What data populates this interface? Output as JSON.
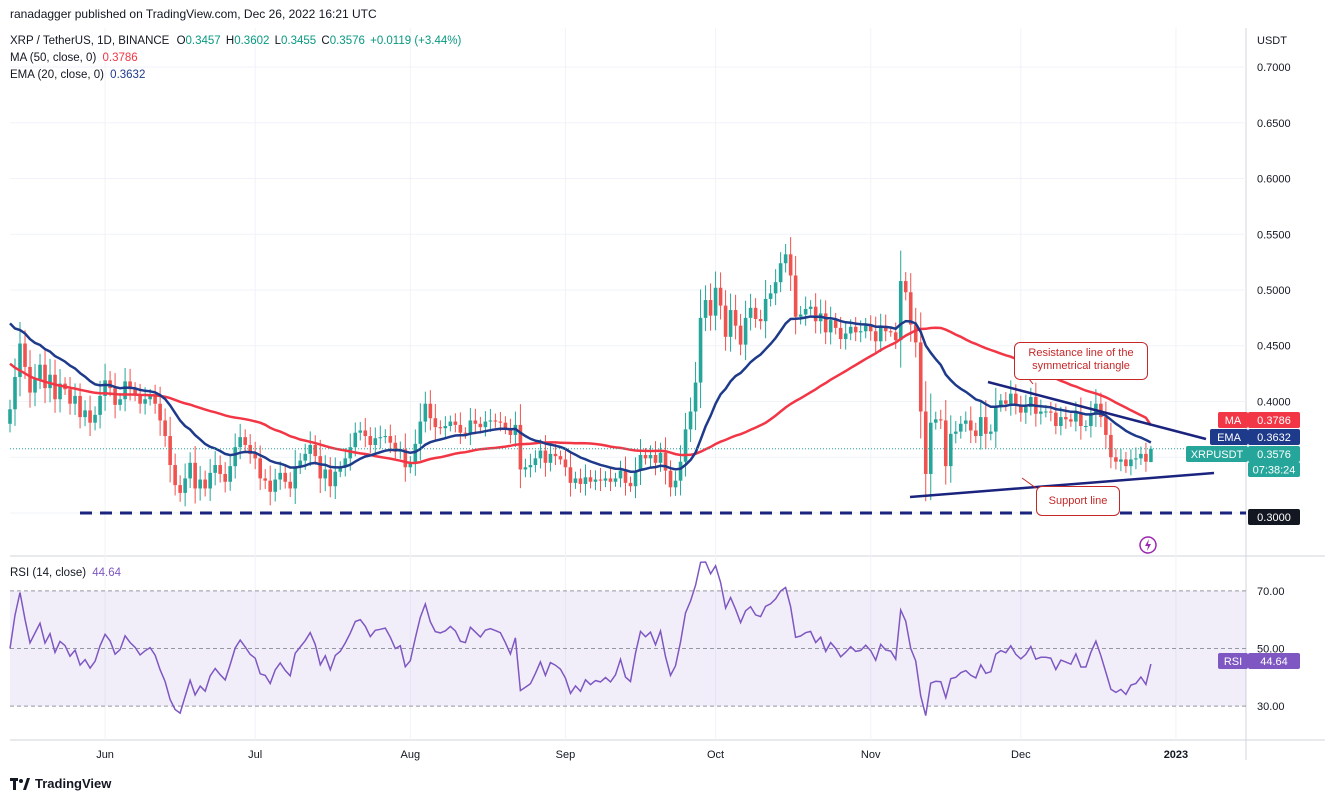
{
  "header": {
    "published": "ranadagger published on TradingView.com, Dec 26, 2022 16:21 UTC"
  },
  "legend": {
    "symbol": "XRP / TetherUS, 1D, BINANCE",
    "o_label": "O",
    "o": "0.3457",
    "h_label": "H",
    "h": "0.3602",
    "l_label": "L",
    "l": "0.3455",
    "c_label": "C",
    "c": "0.3576",
    "change": "+0.0119 (+3.44%)",
    "ma_label": "MA (50, close, 0)",
    "ma_value": "0.3786",
    "ema_label": "EMA (20, close, 0)",
    "ema_value": "0.3632",
    "rsi_label": "RSI (14, close)",
    "rsi_value": "44.64"
  },
  "price_axis": {
    "unit": "USDT",
    "ticks": [
      "0.7000",
      "0.6500",
      "0.6000",
      "0.5500",
      "0.5000",
      "0.4500",
      "0.4000",
      "0.3500",
      "0.3000"
    ]
  },
  "tags": {
    "ma": {
      "label": "MA",
      "value": "0.3786"
    },
    "ema": {
      "label": "EMA",
      "value": "0.3632"
    },
    "last": {
      "label": "XRPUSDT",
      "value": "0.3576",
      "countdown": "07:38:24"
    },
    "level": {
      "value": "0.3000"
    },
    "rsi": {
      "label": "RSI",
      "value": "44.64"
    }
  },
  "rsi_axis": {
    "ticks": [
      "70.00",
      "50.00",
      "30.00"
    ]
  },
  "time_axis": {
    "labels": [
      "Jun",
      "Jul",
      "Aug",
      "Sep",
      "Oct",
      "Nov",
      "Dec",
      "2023"
    ]
  },
  "annotations": {
    "resistance": "Resistance line of the symmetrical triangle",
    "support": "Support line"
  },
  "footer": {
    "brand": "TradingView"
  },
  "colors": {
    "up": "#26a69a",
    "down": "#ef5350",
    "ma": "#f23645",
    "ema": "#1e3a8a",
    "rsi": "#7e57c2",
    "lines": "#1a237e"
  },
  "chart_data": {
    "type": "candlestick",
    "symbol": "XRP / TetherUS, 1D, BINANCE",
    "y_unit": "USDT",
    "ylim": [
      0.265,
      0.735
    ],
    "x_range": [
      "2022-05-13",
      "2023-01-15"
    ],
    "last_candle": {
      "date": "2022-12-26",
      "open": 0.3457,
      "high": 0.3602,
      "low": 0.3455,
      "close": 0.3576
    },
    "closes": [
      0.393,
      0.422,
      0.452,
      0.431,
      0.408,
      0.42,
      0.433,
      0.412,
      0.424,
      0.402,
      0.416,
      0.411,
      0.398,
      0.405,
      0.386,
      0.392,
      0.381,
      0.388,
      0.405,
      0.419,
      0.412,
      0.397,
      0.402,
      0.418,
      0.411,
      0.406,
      0.398,
      0.402,
      0.405,
      0.398,
      0.383,
      0.369,
      0.343,
      0.325,
      0.318,
      0.331,
      0.345,
      0.322,
      0.33,
      0.322,
      0.336,
      0.343,
      0.335,
      0.328,
      0.342,
      0.359,
      0.368,
      0.361,
      0.353,
      0.349,
      0.331,
      0.329,
      0.319,
      0.33,
      0.336,
      0.328,
      0.322,
      0.341,
      0.347,
      0.353,
      0.361,
      0.351,
      0.331,
      0.339,
      0.324,
      0.337,
      0.341,
      0.349,
      0.359,
      0.372,
      0.374,
      0.369,
      0.361,
      0.367,
      0.368,
      0.369,
      0.363,
      0.355,
      0.357,
      0.341,
      0.345,
      0.362,
      0.382,
      0.398,
      0.385,
      0.377,
      0.376,
      0.378,
      0.382,
      0.379,
      0.372,
      0.371,
      0.383,
      0.38,
      0.377,
      0.382,
      0.383,
      0.382,
      0.381,
      0.376,
      0.37,
      0.379,
      0.339,
      0.341,
      0.343,
      0.349,
      0.356,
      0.345,
      0.353,
      0.351,
      0.348,
      0.341,
      0.327,
      0.331,
      0.326,
      0.332,
      0.328,
      0.33,
      0.329,
      0.331,
      0.328,
      0.331,
      0.338,
      0.327,
      0.324,
      0.338,
      0.352,
      0.349,
      0.352,
      0.345,
      0.354,
      0.338,
      0.323,
      0.329,
      0.346,
      0.375,
      0.391,
      0.417,
      0.475,
      0.491,
      0.477,
      0.502,
      0.486,
      0.458,
      0.482,
      0.468,
      0.451,
      0.475,
      0.484,
      0.474,
      0.472,
      0.492,
      0.497,
      0.507,
      0.524,
      0.532,
      0.513,
      0.476,
      0.478,
      0.483,
      0.485,
      0.472,
      0.479,
      0.462,
      0.473,
      0.466,
      0.456,
      0.461,
      0.467,
      0.462,
      0.463,
      0.468,
      0.463,
      0.454,
      0.468,
      0.463,
      0.462,
      0.455,
      0.508,
      0.498,
      0.469,
      0.453,
      0.391,
      0.335,
      0.381,
      0.384,
      0.383,
      0.342,
      0.371,
      0.373,
      0.38,
      0.383,
      0.374,
      0.369,
      0.386,
      0.371,
      0.373,
      0.396,
      0.401,
      0.398,
      0.407,
      0.396,
      0.39,
      0.395,
      0.404,
      0.389,
      0.391,
      0.391,
      0.39,
      0.378,
      0.386,
      0.384,
      0.382,
      0.39,
      0.378,
      0.378,
      0.389,
      0.398,
      0.386,
      0.37,
      0.35,
      0.346,
      0.348,
      0.342,
      0.348,
      0.349,
      0.353,
      0.346,
      0.358
    ],
    "series": [
      {
        "name": "MA (50, close, 0)",
        "last": 0.3786
      },
      {
        "name": "EMA (20, close, 0)",
        "last": 0.3632
      },
      {
        "name": "RSI (14, close)",
        "last": 44.64,
        "ylim": [
          20,
          80
        ]
      }
    ],
    "levels": [
      {
        "value": 0.3,
        "style": "dashed"
      }
    ]
  }
}
